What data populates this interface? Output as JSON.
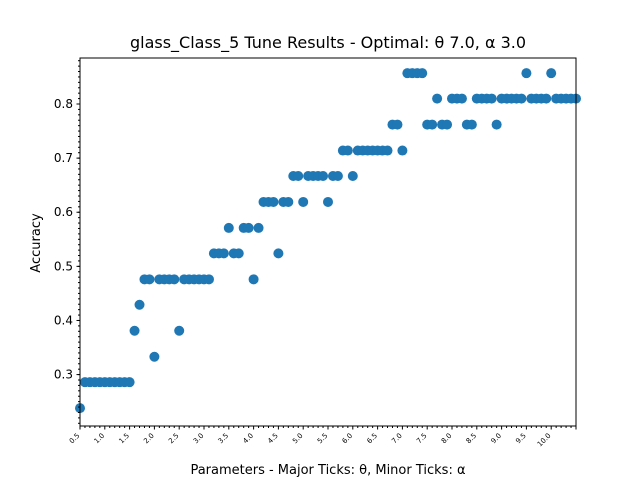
{
  "chart_data": {
    "type": "scatter",
    "title": "glass_Class_5 Tune Results - Optimal: θ 7.0, α 3.0",
    "xlabel": "Parameters - Major Ticks: θ, Minor Ticks: α",
    "ylabel": "Accuracy",
    "xlim": [
      0.5,
      10.5
    ],
    "ylim": [
      0.205,
      0.885
    ],
    "grid": false,
    "legend": "none",
    "point_color": "#1f77b4",
    "x_ticks": [
      "0.5",
      "1.0",
      "1.5",
      "2.0",
      "2.5",
      "3.0",
      "3.5",
      "4.0",
      "4.5",
      "5.0",
      "5.5",
      "6.0",
      "6.5",
      "7.0",
      "7.5",
      "8.0",
      "8.5",
      "9.0",
      "9.5",
      "10.0"
    ],
    "y_ticks": [
      "0.3",
      "0.4",
      "0.5",
      "0.6",
      "0.7",
      "0.8"
    ],
    "points": [
      [
        0.5,
        0.238
      ],
      [
        0.6,
        0.286
      ],
      [
        0.7,
        0.286
      ],
      [
        0.8,
        0.286
      ],
      [
        0.9,
        0.286
      ],
      [
        1.0,
        0.286
      ],
      [
        1.1,
        0.286
      ],
      [
        1.2,
        0.286
      ],
      [
        1.3,
        0.286
      ],
      [
        1.4,
        0.286
      ],
      [
        1.5,
        0.286
      ],
      [
        1.6,
        0.381
      ],
      [
        1.7,
        0.429
      ],
      [
        1.8,
        0.476
      ],
      [
        1.9,
        0.476
      ],
      [
        2.0,
        0.333
      ],
      [
        2.1,
        0.476
      ],
      [
        2.2,
        0.476
      ],
      [
        2.3,
        0.476
      ],
      [
        2.4,
        0.476
      ],
      [
        2.5,
        0.381
      ],
      [
        2.6,
        0.476
      ],
      [
        2.7,
        0.476
      ],
      [
        2.8,
        0.476
      ],
      [
        2.9,
        0.476
      ],
      [
        3.0,
        0.476
      ],
      [
        3.1,
        0.476
      ],
      [
        3.2,
        0.524
      ],
      [
        3.3,
        0.524
      ],
      [
        3.4,
        0.524
      ],
      [
        3.5,
        0.571
      ],
      [
        3.6,
        0.524
      ],
      [
        3.7,
        0.524
      ],
      [
        3.8,
        0.571
      ],
      [
        3.9,
        0.571
      ],
      [
        4.0,
        0.476
      ],
      [
        4.1,
        0.571
      ],
      [
        4.2,
        0.619
      ],
      [
        4.3,
        0.619
      ],
      [
        4.4,
        0.619
      ],
      [
        4.5,
        0.524
      ],
      [
        4.6,
        0.619
      ],
      [
        4.7,
        0.619
      ],
      [
        4.8,
        0.667
      ],
      [
        4.9,
        0.667
      ],
      [
        5.0,
        0.619
      ],
      [
        5.1,
        0.667
      ],
      [
        5.2,
        0.667
      ],
      [
        5.3,
        0.667
      ],
      [
        5.4,
        0.667
      ],
      [
        5.5,
        0.619
      ],
      [
        5.6,
        0.667
      ],
      [
        5.7,
        0.667
      ],
      [
        5.8,
        0.714
      ],
      [
        5.9,
        0.714
      ],
      [
        6.0,
        0.667
      ],
      [
        6.1,
        0.714
      ],
      [
        6.2,
        0.714
      ],
      [
        6.3,
        0.714
      ],
      [
        6.4,
        0.714
      ],
      [
        6.5,
        0.714
      ],
      [
        6.6,
        0.714
      ],
      [
        6.7,
        0.714
      ],
      [
        6.8,
        0.762
      ],
      [
        6.9,
        0.762
      ],
      [
        7.0,
        0.714
      ],
      [
        7.1,
        0.857
      ],
      [
        7.2,
        0.857
      ],
      [
        7.3,
        0.857
      ],
      [
        7.4,
        0.857
      ],
      [
        7.5,
        0.762
      ],
      [
        7.6,
        0.762
      ],
      [
        7.7,
        0.81
      ],
      [
        7.8,
        0.762
      ],
      [
        7.9,
        0.762
      ],
      [
        8.0,
        0.81
      ],
      [
        8.1,
        0.81
      ],
      [
        8.2,
        0.81
      ],
      [
        8.3,
        0.762
      ],
      [
        8.4,
        0.762
      ],
      [
        8.5,
        0.81
      ],
      [
        8.6,
        0.81
      ],
      [
        8.7,
        0.81
      ],
      [
        8.8,
        0.81
      ],
      [
        8.9,
        0.762
      ],
      [
        9.0,
        0.81
      ],
      [
        9.1,
        0.81
      ],
      [
        9.2,
        0.81
      ],
      [
        9.3,
        0.81
      ],
      [
        9.4,
        0.81
      ],
      [
        9.5,
        0.857
      ],
      [
        9.6,
        0.81
      ],
      [
        9.7,
        0.81
      ],
      [
        9.8,
        0.81
      ],
      [
        9.9,
        0.81
      ],
      [
        10.0,
        0.857
      ],
      [
        10.1,
        0.81
      ],
      [
        10.2,
        0.81
      ],
      [
        10.3,
        0.81
      ],
      [
        10.4,
        0.81
      ],
      [
        10.5,
        0.81
      ]
    ]
  }
}
